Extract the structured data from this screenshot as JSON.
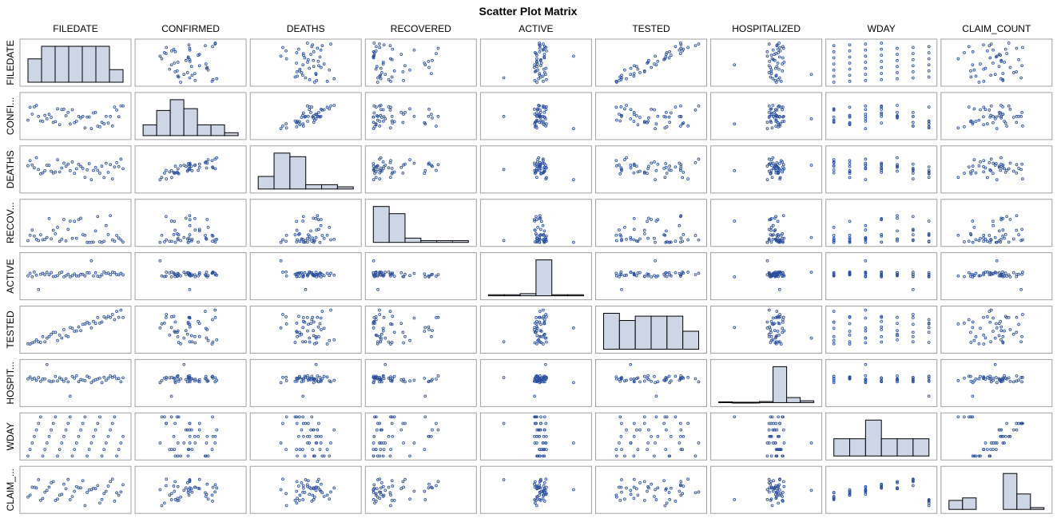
{
  "chart_data": {
    "type": "scatter",
    "title": "Scatter Plot Matrix",
    "variables": [
      "FILEDATE",
      "CONFIRMED",
      "DEATHS",
      "RECOVERED",
      "ACTIVE",
      "TESTED",
      "HOSPITALIZED",
      "WDAY",
      "CLAIM_COUNT"
    ],
    "row_labels": [
      "FILEDATE",
      "CONFI...",
      "DEATHS",
      "RECOV...",
      "ACTIVE",
      "TESTED",
      "HOSPIT...",
      "WDAY",
      "CLAIM_..."
    ],
    "diagonal": "histogram",
    "histograms": {
      "FILEDATE": [
        0.65,
        1.0,
        1.0,
        1.0,
        1.0,
        1.0,
        0.35
      ],
      "CONFIRMED": [
        0.3,
        0.7,
        1.0,
        0.75,
        0.3,
        0.3,
        0.08
      ],
      "DEATHS": [
        0.35,
        1.0,
        0.9,
        0.12,
        0.12,
        0.06
      ],
      "RECOVERED": [
        1.0,
        0.8,
        0.12,
        0.05,
        0.05,
        0.05
      ],
      "ACTIVE": [
        0.03,
        0.03,
        0.06,
        1.0,
        0.03,
        0.03
      ],
      "TESTED": [
        1.0,
        0.8,
        0.92,
        0.92,
        0.92,
        0.5
      ],
      "HOSPITALIZED": [
        0.02,
        0.01,
        0.01,
        0.03,
        1.0,
        0.14,
        0.05
      ],
      "WDAY": [
        0.48,
        0.48,
        1.0,
        0.48,
        0.48,
        0.48
      ],
      "CLAIM_COUNT": [
        0.25,
        0.32,
        0.0,
        0.0,
        1.0,
        0.43,
        0.05
      ]
    },
    "grid": false,
    "legend": "none"
  },
  "colors": {
    "marker": "#2a4f9c",
    "bar_fill": "#ccd6e6",
    "frame": "#a0a0a0"
  }
}
